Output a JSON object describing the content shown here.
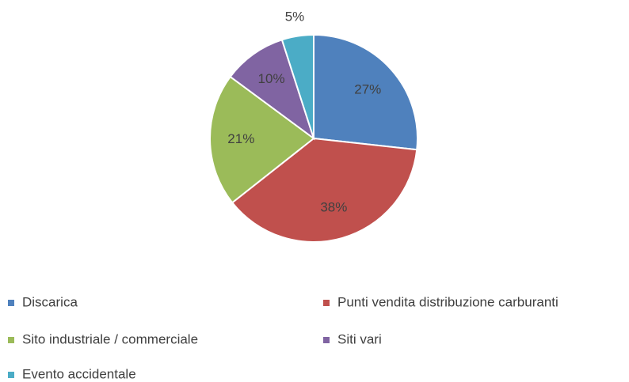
{
  "chart_data": {
    "type": "pie",
    "categories": [
      "Discarica",
      "Punti vendita distribuzione carburanti",
      "Sito industriale / commerciale",
      "Siti vari",
      "Evento accidentale"
    ],
    "values": [
      27,
      38,
      21,
      10,
      5
    ],
    "value_labels": [
      "27%",
      "38%",
      "21%",
      "10%",
      "5%"
    ],
    "colors": [
      "#4f81bd",
      "#c0504d",
      "#9bbb59",
      "#8064a2",
      "#4bacc6"
    ],
    "legend": "bottom"
  }
}
